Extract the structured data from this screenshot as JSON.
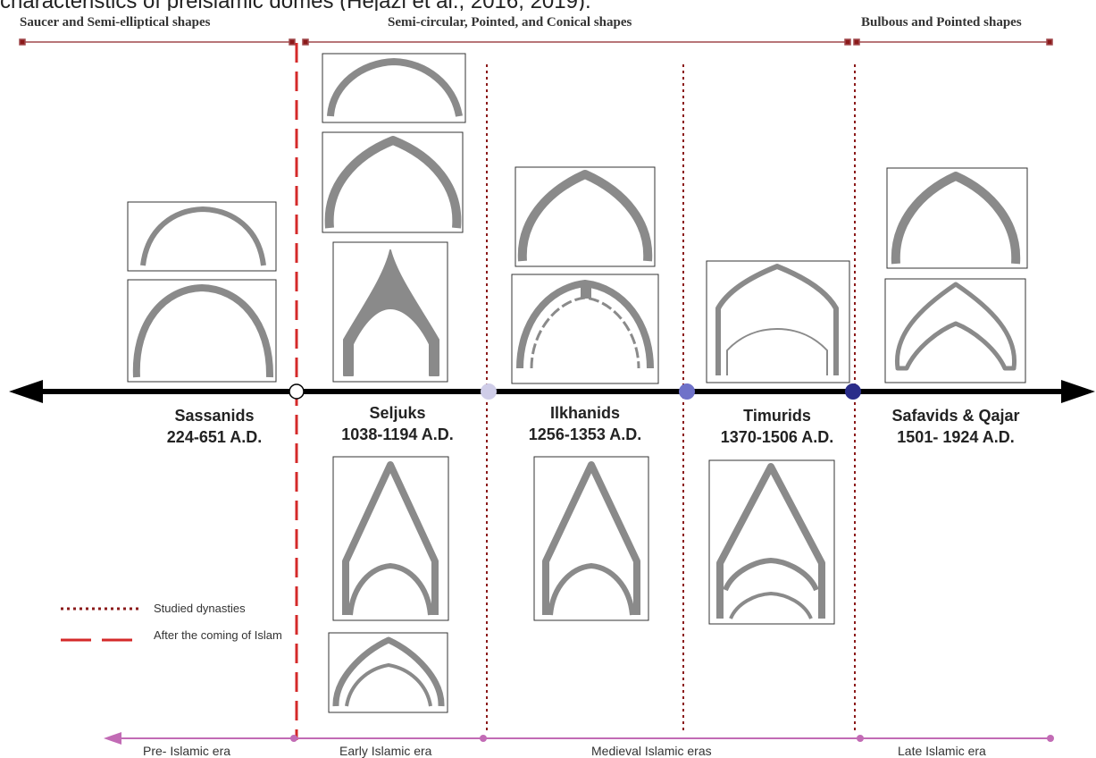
{
  "caption_fragment": "characteristics of preislamic domes (Hejazi et al., 2016; 2019).",
  "shape_bands": [
    {
      "label": "Saucer and Semi-elliptical shapes"
    },
    {
      "label": "Semi-circular, Pointed,  and Conical shapes"
    },
    {
      "label": "Bulbous and Pointed shapes"
    }
  ],
  "dynasties": [
    {
      "name": "Sassanids",
      "dates": "224-651 A.D."
    },
    {
      "name": "Seljuks",
      "dates": "1038-1194 A.D."
    },
    {
      "name": "Ilkhanids",
      "dates": "1256-1353 A.D."
    },
    {
      "name": "Timurids",
      "dates": "1370-1506 A.D."
    },
    {
      "name": "Safavids & Qajar",
      "dates": "1501- 1924 A.D."
    }
  ],
  "legend": {
    "studied": "Studied dynasties",
    "islam": "After the coming of Islam"
  },
  "eras": [
    {
      "label": "Pre- Islamic era"
    },
    {
      "label": "Early Islamic era"
    },
    {
      "label": "Medieval Islamic eras"
    },
    {
      "label": "Late Islamic era"
    }
  ],
  "colors": {
    "band_line": "#a0484c",
    "band_marker": "#8b1a1a",
    "islam_line": "#d42a2a",
    "studied_line": "#8b1a1a",
    "era_line": "#c26bb5",
    "dome": "#8a8a8a",
    "timeline": "#000000",
    "node_light": "#cfcde8",
    "node_mid": "#6f72c9",
    "node_dark": "#2a2d8a"
  }
}
